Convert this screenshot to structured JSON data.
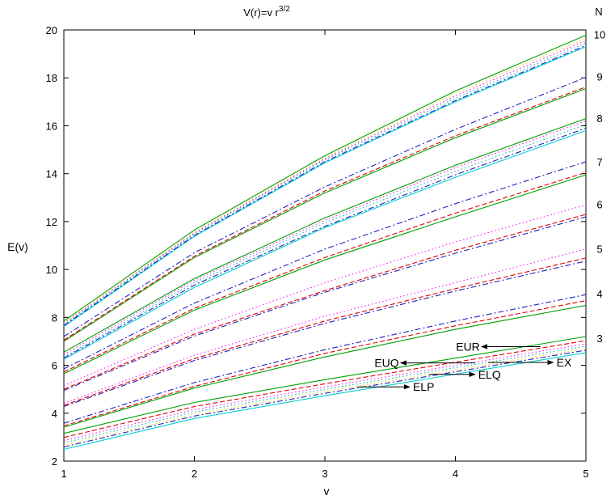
{
  "chart_data": {
    "type": "line",
    "title": "V(r)=v r",
    "title_superscript": "3/2",
    "xlabel": "v",
    "ylabel": "E(v)",
    "xlim": [
      1,
      5
    ],
    "ylim": [
      2,
      20
    ],
    "xticks": [
      "1",
      "2",
      "3",
      "4",
      "5"
    ],
    "yticks": [
      "2",
      "4",
      "6",
      "8",
      "10",
      "12",
      "14",
      "16",
      "18",
      "20"
    ],
    "grid": false,
    "legend": "none",
    "x": [
      1,
      2,
      3,
      4,
      5
    ],
    "series_styles": [
      {
        "color": "#00a000",
        "dash": "",
        "width": 1.1
      },
      {
        "color": "#e00000",
        "dash": "6,3",
        "width": 1.1
      },
      {
        "color": "#ff00ff",
        "dash": "1.5,3",
        "width": 1.0
      },
      {
        "color": "#00b0b0",
        "dash": "1.5,3",
        "width": 1.0
      },
      {
        "color": "#ffcc00",
        "dash": "1.5,3",
        "width": 1.0
      },
      {
        "color": "#2020c0",
        "dash": "7,3,2,3",
        "width": 1.1
      },
      {
        "color": "#00d0d0",
        "dash": "",
        "width": 1.1
      }
    ],
    "bundles": [
      {
        "label": "3",
        "offsets": [
          0.45,
          0.28,
          0.15,
          0.05,
          -0.05,
          -0.12,
          -0.22
        ],
        "base": [
          2.71,
          4.0,
          4.95,
          5.85,
          6.75
        ]
      },
      {
        "label": "4",
        "offsets": [
          0.0,
          0.0,
          0.0,
          0.0,
          0.0,
          0.0,
          0.0
        ],
        "base": [
          3.5,
          5.18,
          6.48,
          7.55,
          8.55
        ],
        "lines": [
          {
            "style": 0,
            "values": [
              3.42,
              5.05,
              6.35,
              7.5,
              8.5
            ]
          },
          {
            "style": 1,
            "values": [
              3.47,
              5.12,
              6.5,
              7.65,
              8.7
            ]
          },
          {
            "style": 5,
            "values": [
              3.58,
              5.28,
              6.65,
              7.85,
              8.95
            ]
          }
        ]
      },
      {
        "label": "5",
        "offsets": [
          0,
          0,
          0,
          0,
          0,
          0,
          0
        ],
        "base": [
          4.35,
          6.3,
          7.85,
          9.2,
          10.4
        ],
        "lines": [
          {
            "style": 5,
            "values": [
              4.28,
              6.2,
              7.75,
              9.1,
              10.35
            ]
          },
          {
            "style": 1,
            "values": [
              4.33,
              6.28,
              7.85,
              9.2,
              10.48
            ]
          },
          {
            "style": 2,
            "values": [
              4.42,
              6.42,
              8.05,
              9.45,
              10.85
            ]
          }
        ]
      },
      {
        "label": "6",
        "offsets": [
          0,
          0,
          0,
          0,
          0,
          0,
          0
        ],
        "base": [
          5.0,
          7.3,
          9.15,
          10.75,
          12.2
        ],
        "lines": [
          {
            "style": 5,
            "values": [
              4.95,
              7.22,
              9.05,
              10.68,
              12.2
            ]
          },
          {
            "style": 1,
            "values": [
              5.0,
              7.3,
              9.12,
              10.8,
              12.3
            ]
          },
          {
            "style": 2,
            "values": [
              5.15,
              7.5,
              9.45,
              11.15,
              12.7
            ]
          }
        ]
      },
      {
        "label": "7",
        "offsets": [
          0,
          0,
          0,
          0,
          0,
          0,
          0
        ],
        "base": [
          5.7,
          8.35,
          10.5,
          12.3,
          14.0
        ],
        "lines": [
          {
            "style": 0,
            "values": [
              5.65,
              8.3,
              10.4,
              12.2,
              13.95
            ]
          },
          {
            "style": 1,
            "values": [
              5.72,
              8.38,
              10.5,
              12.35,
              14.05
            ]
          },
          {
            "style": 5,
            "values": [
              5.85,
              8.6,
              10.85,
              12.75,
              14.5
            ]
          }
        ]
      },
      {
        "label": "8",
        "offsets": [
          0,
          0,
          0,
          0,
          0,
          0,
          0
        ],
        "base": [
          6.3,
          9.3,
          11.8,
          13.9,
          15.8
        ],
        "lines": [
          {
            "style": 6,
            "values": [
              6.25,
              9.25,
              11.75,
              13.85,
              15.8
            ]
          },
          {
            "style": 5,
            "values": [
              6.3,
              9.35,
              11.8,
              13.95,
              15.9
            ]
          },
          {
            "style": 3,
            "values": [
              6.35,
              9.45,
              11.95,
              14.1,
              16.05
            ]
          },
          {
            "style": 2,
            "values": [
              6.45,
              9.55,
              12.05,
              14.25,
              16.2
            ]
          },
          {
            "style": 0,
            "values": [
              6.55,
              9.62,
              12.15,
              14.35,
              16.3
            ]
          }
        ]
      },
      {
        "label": "9",
        "offsets": [
          0,
          0,
          0,
          0,
          0,
          0,
          0
        ],
        "base": [
          7.05,
          10.5,
          13.3,
          15.6,
          17.6
        ],
        "lines": [
          {
            "style": 0,
            "values": [
              7.0,
              10.5,
              13.2,
              15.5,
              17.55
            ]
          },
          {
            "style": 1,
            "values": [
              7.05,
              10.55,
              13.28,
              15.58,
              17.62
            ]
          },
          {
            "style": 5,
            "values": [
              7.2,
              10.7,
              13.45,
              15.85,
              18.02
            ]
          }
        ]
      },
      {
        "label": "10",
        "offsets": [
          0,
          0,
          0,
          0,
          0,
          0,
          0
        ],
        "base": [
          7.7,
          11.5,
          14.6,
          17.1,
          19.3
        ],
        "lines": [
          {
            "style": 6,
            "values": [
              7.62,
              11.38,
              14.45,
              17.0,
              19.3
            ]
          },
          {
            "style": 5,
            "values": [
              7.66,
              11.42,
              14.5,
              17.05,
              19.35
            ]
          },
          {
            "style": 3,
            "values": [
              7.7,
              11.48,
              14.58,
              17.15,
              19.45
            ]
          },
          {
            "style": 2,
            "values": [
              7.75,
              11.52,
              14.62,
              17.25,
              19.55
            ]
          },
          {
            "style": 4,
            "values": [
              7.78,
              11.56,
              14.66,
              17.35,
              19.65
            ]
          },
          {
            "style": 0,
            "values": [
              7.85,
              11.65,
              14.75,
              17.45,
              19.78
            ]
          }
        ]
      }
    ],
    "n_axis_title": "N",
    "annotations": [
      {
        "label": "EUR",
        "x": 4.2,
        "y": 6.78,
        "tail_x": 4.65,
        "tail_y": 6.78
      },
      {
        "label": "EUQ",
        "x": 3.58,
        "y": 6.1,
        "tail_x": 4.15,
        "tail_y": 6.1
      },
      {
        "label": "EX",
        "x": 4.75,
        "y": 6.12,
        "tail_x": 4.25,
        "tail_y": 6.12
      },
      {
        "label": "ELQ",
        "x": 4.15,
        "y": 5.62,
        "tail_x": 3.8,
        "tail_y": 5.62
      },
      {
        "label": "ELP",
        "x": 3.65,
        "y": 5.1,
        "tail_x": 3.25,
        "tail_y": 5.1
      }
    ]
  }
}
